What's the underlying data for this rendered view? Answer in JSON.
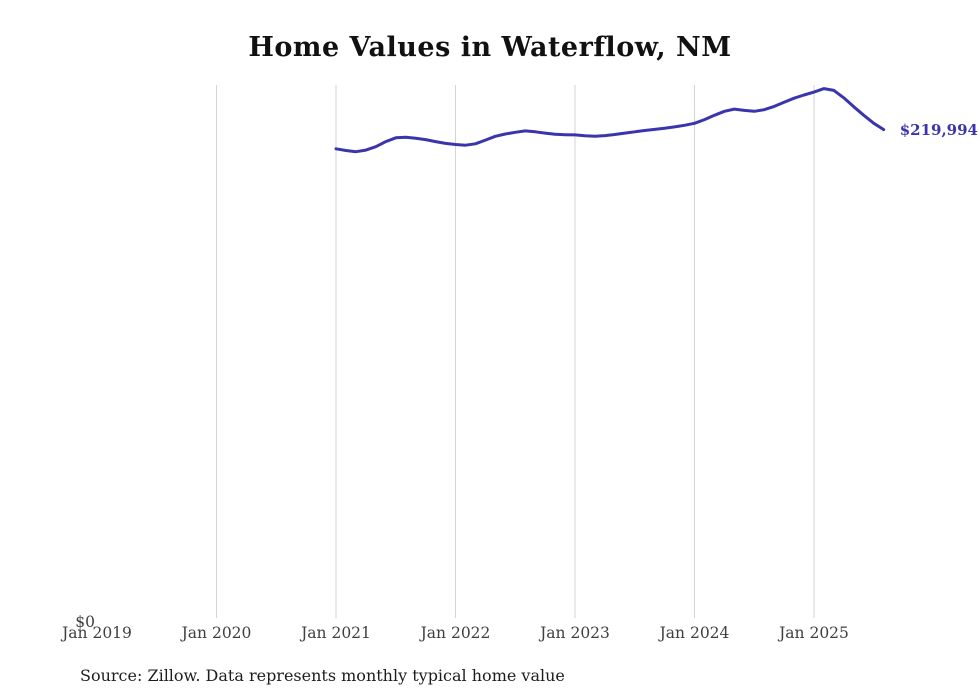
{
  "chart": {
    "title": "Home Values in Waterflow, NM",
    "source": "Source: Zillow. Data represents monthly typical home value",
    "end_label": "$219,994",
    "y_zero_label": "$0"
  },
  "chart_data": {
    "type": "line",
    "title": "Home Values in Waterflow, NM",
    "source": "Source: Zillow. Data represents monthly typical home value",
    "xlabel": "",
    "ylabel": "",
    "ylim": [
      0,
      240000
    ],
    "grid": "vertical-year-gridlines",
    "line_color": "#3a35ad",
    "grid_color": "#d3d3d3",
    "tick_color": "#3f3f3f",
    "x_tick_labels": [
      "Jan 2019",
      "Jan 2020",
      "Jan 2021",
      "Jan 2022",
      "Jan 2023",
      "Jan 2024",
      "Jan 2025"
    ],
    "gridline_years": [
      "Jan 2020",
      "Jan 2021",
      "Jan 2022",
      "Jan 2023",
      "Jan 2024",
      "Jan 2025"
    ],
    "y_tick_labels": [
      "$0"
    ],
    "end_value": 219994,
    "end_value_label": "$219,994",
    "series": [
      {
        "name": "Typical home value",
        "frequency": "monthly",
        "start": "Jan 2021",
        "end": "Aug 2025",
        "start_month_index": 24,
        "values": [
          211400,
          210600,
          210100,
          210800,
          212300,
          214600,
          216300,
          216600,
          216100,
          215500,
          214600,
          213800,
          213300,
          213000,
          213600,
          215300,
          217000,
          218000,
          218800,
          219400,
          219000,
          218400,
          217900,
          217700,
          217600,
          217200,
          217000,
          217300,
          217800,
          218400,
          219000,
          219600,
          220100,
          220600,
          221200,
          221900,
          222800,
          224500,
          226400,
          228200,
          229200,
          228600,
          228200,
          228900,
          230400,
          232300,
          234100,
          235500,
          236800,
          238400,
          237600,
          234200,
          230200,
          226400,
          222800,
          219994
        ]
      }
    ]
  }
}
